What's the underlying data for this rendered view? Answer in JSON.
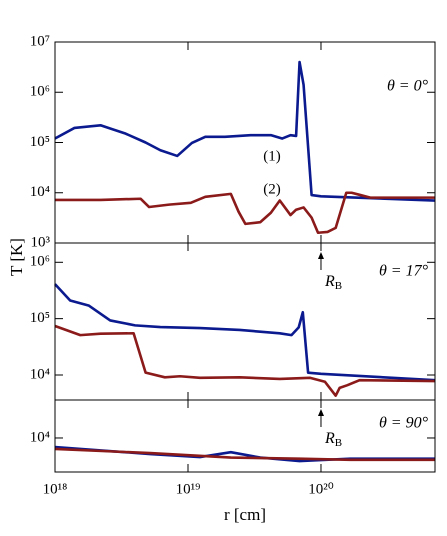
{
  "chart_data": [
    {
      "type": "line",
      "log_x": true,
      "log_y": true,
      "xlim": [
        1e+18,
        7.2e+20
      ],
      "ylim": [
        1000.0,
        10000000.0
      ],
      "yticks": [
        {
          "value": 1000.0,
          "label": "10³"
        },
        {
          "value": 10000.0,
          "label": "10⁴"
        },
        {
          "value": 100000.0,
          "label": "10⁵"
        },
        {
          "value": 1000000.0,
          "label": "10⁶"
        },
        {
          "value": 10000000.0,
          "label": "10⁷"
        }
      ],
      "annotation": "θ = 0°",
      "series": [
        {
          "name": "(1)",
          "color": "#0b1a8f",
          "x": [
            1e+18,
            1.4e+18,
            2.2e+18,
            3.4e+18,
            4.8e+18,
            6.2e+18,
            8.3e+18,
            1.07e+19,
            1.35e+19,
            1.9e+19,
            2.95e+19,
            4.2e+19,
            5.1e+19,
            5.9e+19,
            6.5e+19,
            6.9e+19,
            7.4e+19,
            8.5e+19,
            1e+20,
            7.2e+20
          ],
          "values": [
            120000.0,
            195000.0,
            220000.0,
            150000.0,
            100000.0,
            70000.0,
            54000.0,
            98000.0,
            130000.0,
            130000.0,
            140000.0,
            140000.0,
            120000.0,
            140000.0,
            135000.0,
            4000000.0,
            1400000.0,
            9000.0,
            8500.0,
            7000.0
          ]
        },
        {
          "name": "(2)",
          "color": "#8b1a1a",
          "x": [
            1e+18,
            2.2e+18,
            4.4e+18,
            5.1e+18,
            7.2e+18,
            1.05e+19,
            1.35e+19,
            2.1e+19,
            2.4e+19,
            2.7e+19,
            3.5e+19,
            4.2e+19,
            4.9e+19,
            5.9e+19,
            6.5e+19,
            7.4e+19,
            8.5e+19,
            9.5e+19,
            1.12e+20,
            1.29e+20,
            1.55e+20,
            1.7e+20,
            1.95e+20,
            2.35e+20,
            7.2e+20
          ],
          "values": [
            7200.0,
            7200.0,
            7600.0,
            5200.0,
            5800.0,
            6300.0,
            8300.0,
            9500.0,
            4200.0,
            2400.0,
            2600.0,
            4000.0,
            7000.0,
            3600.0,
            4600.0,
            5100.0,
            3200.0,
            1600.0,
            1660.0,
            2000.0,
            10000.0,
            10000.0,
            9100.0,
            8000.0,
            8000.0
          ]
        }
      ]
    },
    {
      "type": "line",
      "log_x": true,
      "log_y": true,
      "xlim": [
        1e+18,
        7.2e+20
      ],
      "ylim": [
        3600.0,
        2200000.0
      ],
      "yticks": [
        {
          "value": 10000.0,
          "label": "10⁴"
        },
        {
          "value": 100000.0,
          "label": "10⁵"
        },
        {
          "value": 1000000.0,
          "label": "10⁶"
        }
      ],
      "ylabel": "T [K]",
      "annotation": "θ = 17°",
      "marker": {
        "x": 1e+20,
        "label": "R",
        "sub": "B"
      },
      "series": [
        {
          "color": "#0b1a8f",
          "x": [
            1e+18,
            1.3e+18,
            1.8e+18,
            2.6e+18,
            4e+18,
            6.2e+18,
            1.23e+19,
            2.45e+19,
            4.9e+19,
            6e+19,
            6.8e+19,
            7.3e+19,
            8e+19,
            1e+20,
            7.2e+20
          ],
          "values": [
            410000.0,
            210000.0,
            170000.0,
            93000.0,
            76000.0,
            71000.0,
            68000.0,
            63000.0,
            55000.0,
            51000.0,
            70000.0,
            130000.0,
            11000.0,
            10500.0,
            8100.0
          ]
        },
        {
          "color": "#8b1a1a",
          "x": [
            1e+18,
            1.55e+18,
            2.2e+18,
            3.9e+18,
            4.8e+18,
            6.7e+18,
            8.7e+18,
            1.23e+19,
            2.45e+19,
            4.9e+19,
            8.3e+19,
            1.07e+20,
            1.29e+20,
            1.38e+20,
            1.58e+20,
            1.95e+20,
            7.2e+20
          ],
          "values": [
            74000.0,
            51000.0,
            54000.0,
            55000.0,
            11000.0,
            9100.0,
            9500.0,
            8900.0,
            9100.0,
            8500.0,
            8900.0,
            7600.0,
            4300.0,
            5900.0,
            6600.0,
            8100.0,
            7800.0
          ]
        }
      ]
    },
    {
      "type": "line",
      "log_x": true,
      "log_y": true,
      "xlim": [
        1e+18,
        7.2e+20
      ],
      "ylim": [
        2500.0,
        47000.0
      ],
      "xticks": [
        {
          "value": 1e+18,
          "label": "10¹⁸"
        },
        {
          "value": 1e+19,
          "label": "10¹⁹"
        },
        {
          "value": 1e+20,
          "label": "10²⁰"
        }
      ],
      "yticks": [
        {
          "value": 10000.0,
          "label": "10⁴"
        }
      ],
      "xlabel": "r [cm]",
      "annotation": "θ = 90°",
      "marker": {
        "x": 1e+20,
        "label": "R",
        "sub": "B"
      },
      "series": [
        {
          "color": "#0b1a8f",
          "x": [
            1e+18,
            5.2e+18,
            1.23e+19,
            2.1e+19,
            3.5e+19,
            6.9e+19,
            1.66e+20,
            7.2e+20
          ],
          "values": [
            6900.0,
            5200.0,
            4600.0,
            5600.0,
            4500.0,
            3900.0,
            4300.0,
            4300.0
          ]
        },
        {
          "color": "#8b1a1a",
          "x": [
            1e+18,
            5.2e+18,
            2.1e+19,
            6.9e+19,
            1.66e+20,
            7.2e+20
          ],
          "values": [
            6400.0,
            5400.0,
            4500.0,
            4300.0,
            4100.0,
            4100.0
          ]
        }
      ]
    }
  ]
}
